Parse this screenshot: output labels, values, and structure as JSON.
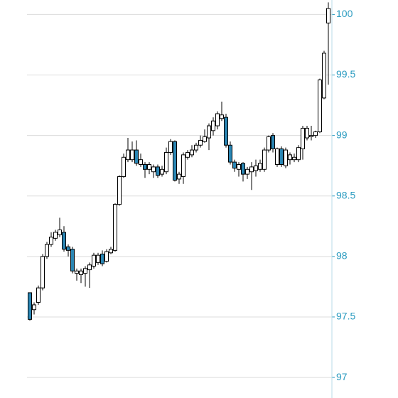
{
  "chart_data": {
    "type": "candlestick",
    "ylim": [
      96.83,
      100.12
    ],
    "yticks": [
      97,
      97.5,
      98,
      98.5,
      99,
      99.5,
      100
    ],
    "grid": true,
    "up_color": "#ffffff",
    "down_color": "#2a86b4",
    "axis_color": "#2a9bc0",
    "open": [
      97.7,
      97.56,
      97.62,
      97.74,
      98.0,
      98.1,
      98.15,
      98.18,
      98.2,
      98.08,
      98.06,
      97.86,
      97.85,
      97.86,
      97.89,
      97.92,
      97.95,
      98.02,
      97.96,
      98.03,
      98.05,
      98.43,
      98.66,
      98.8,
      98.8,
      98.88,
      98.76,
      98.76,
      98.72,
      98.7,
      98.74,
      98.68,
      98.7,
      98.86,
      98.95,
      98.64,
      98.66,
      98.82,
      98.84,
      98.88,
      98.92,
      98.95,
      98.98,
      99.04,
      99.08,
      99.14,
      99.15,
      98.92,
      98.78,
      98.72,
      98.77,
      98.68,
      98.7,
      98.71,
      98.72,
      98.72,
      98.88,
      99.0,
      98.76,
      98.89,
      98.75,
      98.8,
      98.8,
      98.8,
      98.89,
      98.98,
      98.99,
      99.0,
      99.03,
      99.31,
      99.93
    ],
    "high": [
      97.7,
      97.62,
      97.76,
      98.02,
      98.12,
      98.2,
      98.22,
      98.32,
      98.25,
      98.1,
      98.08,
      97.9,
      97.9,
      97.92,
      97.95,
      98.03,
      98.03,
      98.05,
      98.06,
      98.08,
      98.44,
      98.67,
      98.85,
      98.98,
      98.95,
      98.96,
      98.85,
      98.78,
      98.78,
      98.76,
      98.76,
      98.75,
      98.9,
      98.97,
      98.96,
      98.7,
      98.86,
      98.88,
      98.92,
      98.94,
      99.0,
      99.05,
      99.1,
      99.15,
      99.2,
      99.28,
      99.18,
      98.95,
      98.8,
      98.78,
      98.78,
      98.74,
      98.78,
      98.8,
      98.8,
      98.9,
      99.0,
      99.02,
      98.9,
      98.91,
      98.9,
      98.86,
      98.85,
      98.92,
      99.08,
      99.08,
      99.08,
      99.04,
      99.47,
      99.7,
      100.1
    ],
    "low": [
      97.47,
      97.52,
      97.6,
      97.72,
      97.98,
      98.08,
      98.13,
      98.16,
      98.04,
      98.0,
      97.86,
      97.8,
      97.78,
      97.75,
      97.74,
      97.9,
      97.93,
      97.92,
      97.95,
      98.02,
      98.04,
      98.42,
      98.65,
      98.78,
      98.78,
      98.75,
      98.74,
      98.65,
      98.68,
      98.65,
      98.65,
      98.66,
      98.68,
      98.84,
      98.62,
      98.6,
      98.6,
      98.8,
      98.82,
      98.86,
      98.9,
      98.94,
      98.88,
      99.0,
      99.05,
      99.12,
      98.9,
      98.76,
      98.7,
      98.66,
      98.62,
      98.64,
      98.55,
      98.66,
      98.7,
      98.7,
      98.86,
      98.86,
      98.74,
      98.74,
      98.73,
      98.76,
      98.78,
      98.78,
      98.8,
      98.96,
      98.96,
      98.98,
      99.02,
      99.3,
      99.42
    ],
    "close": [
      97.48,
      97.6,
      97.74,
      98.0,
      98.1,
      98.16,
      98.2,
      98.22,
      98.06,
      98.05,
      97.88,
      97.88,
      97.88,
      97.9,
      97.93,
      98.01,
      98.01,
      97.94,
      98.04,
      98.06,
      98.43,
      98.66,
      98.82,
      98.88,
      98.88,
      98.77,
      98.8,
      98.72,
      98.76,
      98.74,
      98.67,
      98.72,
      98.86,
      98.95,
      98.63,
      98.68,
      98.84,
      98.86,
      98.88,
      98.92,
      98.96,
      98.99,
      99.08,
      99.12,
      99.18,
      99.17,
      98.92,
      98.78,
      98.73,
      98.76,
      98.68,
      98.72,
      98.74,
      98.75,
      98.77,
      98.88,
      98.99,
      98.89,
      98.89,
      98.76,
      98.88,
      98.84,
      98.82,
      98.9,
      99.06,
      99.06,
      99.0,
      99.03,
      99.46,
      99.68,
      100.05
    ]
  }
}
